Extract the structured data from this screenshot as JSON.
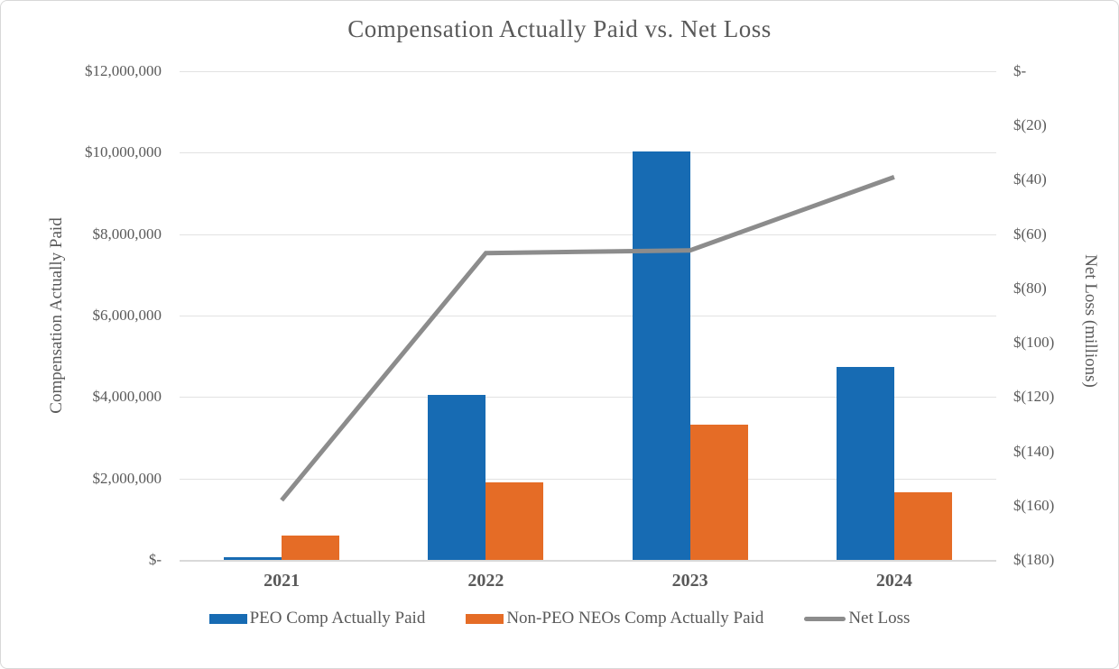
{
  "page": {
    "background": "#FFFFFF",
    "border_color": "#D8D8D8",
    "text_color": "#595959",
    "gridline_color": "#E2E2E2"
  },
  "chart_data": {
    "type": "bar",
    "subtype": "grouped-bars-with-line-overlay",
    "title": "Compensation Actually Paid vs. Net Loss",
    "categories": [
      "2021",
      "2022",
      "2023",
      "2024"
    ],
    "series": [
      {
        "name": "PEO Comp Actually Paid",
        "type": "bar",
        "axis": "left",
        "color": "#176BB3",
        "values": [
          70000,
          4050000,
          10030000,
          4740000
        ]
      },
      {
        "name": "Non-PEO NEOs Comp Actually Paid",
        "type": "bar",
        "axis": "left",
        "color": "#E56C26",
        "values": [
          590000,
          1900000,
          3320000,
          1660000
        ]
      },
      {
        "name": "Net Loss",
        "type": "line",
        "axis": "right",
        "color": "#8C8C8C",
        "values": [
          -158,
          -67,
          -66,
          -39
        ]
      }
    ],
    "left_axis": {
      "title": "Compensation Actually Paid",
      "min": 0,
      "max": 12000000,
      "step": 2000000,
      "tick_labels": [
        "$12,000,000",
        "$10,000,000",
        "$8,000,000",
        "$6,000,000",
        "$4,000,000",
        "$2,000,000",
        "$-"
      ]
    },
    "right_axis": {
      "title": "Net Loss (millions)",
      "min": -180,
      "max": 0,
      "step": 20,
      "tick_labels": [
        "$-",
        "$(20)",
        "$(40)",
        "$(60)",
        "$(80)",
        "$(100)",
        "$(120)",
        "$(140)",
        "$(160)",
        "$(180)"
      ]
    },
    "legend": {
      "position": "bottom-center",
      "entries": [
        "PEO Comp Actually Paid",
        "Non-PEO NEOs Comp Actually Paid",
        "Net Loss"
      ]
    },
    "grid": true,
    "x_tick_labels": [
      "2021",
      "2022",
      "2023",
      "2024"
    ]
  }
}
